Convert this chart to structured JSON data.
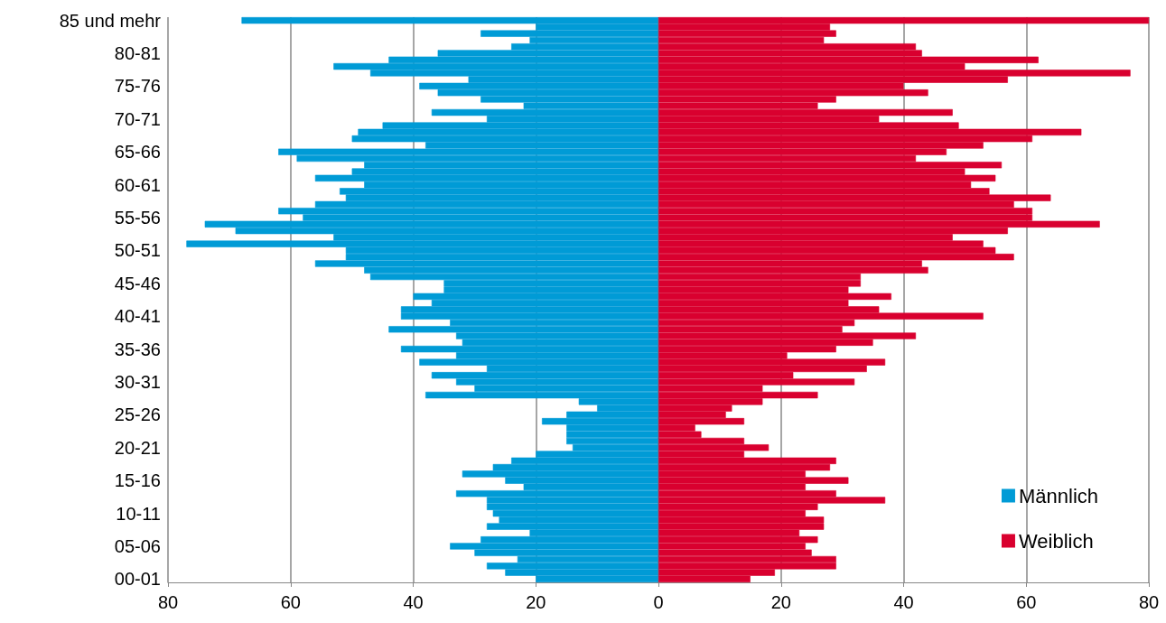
{
  "chart_data": {
    "type": "bar",
    "orientation": "horizontal",
    "categories": [
      "85 und mehr",
      null,
      null,
      null,
      null,
      "80-81",
      null,
      null,
      null,
      null,
      "75-76",
      null,
      null,
      null,
      null,
      "70-71",
      null,
      null,
      null,
      null,
      "65-66",
      null,
      null,
      null,
      null,
      "60-61",
      null,
      null,
      null,
      null,
      "55-56",
      null,
      null,
      null,
      null,
      "50-51",
      null,
      null,
      null,
      null,
      "45-46",
      null,
      null,
      null,
      null,
      "40-41",
      null,
      null,
      null,
      null,
      "35-36",
      null,
      null,
      null,
      null,
      "30-31",
      null,
      null,
      null,
      null,
      "25-26",
      null,
      null,
      null,
      null,
      "20-21",
      null,
      null,
      null,
      null,
      "15-16",
      null,
      null,
      null,
      null,
      "10-11",
      null,
      null,
      null,
      null,
      "05-06",
      null,
      null,
      null,
      null,
      "00-01"
    ],
    "series": [
      {
        "name": "Männlich",
        "color": "#009bd6",
        "values": [
          -68,
          -20,
          -29,
          -21,
          -24,
          -36,
          -44,
          -53,
          -47,
          -31,
          -39,
          -36,
          -29,
          -22,
          -37,
          -28,
          -45,
          -49,
          -50,
          -38,
          -62,
          -59,
          -48,
          -50,
          -56,
          -48,
          -52,
          -51,
          -56,
          -62,
          -58,
          -74,
          -69,
          -53,
          -77,
          -51,
          -51,
          -56,
          -48,
          -47,
          -35,
          -35,
          -40,
          -37,
          -42,
          -42,
          -34,
          -44,
          -33,
          -32,
          -42,
          -33,
          -39,
          -28,
          -37,
          -33,
          -30,
          -38,
          -13,
          -10,
          -15,
          -19,
          -15,
          -15,
          -15,
          -14,
          -20,
          -24,
          -27,
          -32,
          -25,
          -22,
          -33,
          -28,
          -28,
          -27,
          -26,
          -28,
          -21,
          -29,
          -34,
          -30,
          -23,
          -28,
          -25,
          -20
        ]
      },
      {
        "name": "Weiblich",
        "color": "#d9002f",
        "values": [
          80,
          28,
          29,
          27,
          42,
          43,
          62,
          50,
          77,
          57,
          40,
          44,
          29,
          26,
          48,
          36,
          49,
          69,
          61,
          53,
          47,
          42,
          56,
          50,
          55,
          51,
          54,
          64,
          58,
          61,
          61,
          72,
          57,
          48,
          53,
          55,
          58,
          43,
          44,
          33,
          33,
          31,
          38,
          31,
          36,
          53,
          32,
          30,
          42,
          35,
          29,
          21,
          37,
          34,
          22,
          32,
          17,
          26,
          17,
          12,
          11,
          14,
          6,
          7,
          14,
          18,
          14,
          29,
          28,
          24,
          31,
          24,
          29,
          37,
          26,
          24,
          27,
          27,
          23,
          26,
          24,
          25,
          29,
          29,
          19,
          15
        ]
      }
    ],
    "xlim": [
      -80,
      80
    ],
    "xticks": [
      {
        "value": -80,
        "label": "80"
      },
      {
        "value": -60,
        "label": "60"
      },
      {
        "value": -40,
        "label": "40"
      },
      {
        "value": -20,
        "label": "20"
      },
      0,
      20,
      40,
      60,
      80
    ],
    "grid": "x",
    "legend": "bottom right",
    "stacked": true
  }
}
